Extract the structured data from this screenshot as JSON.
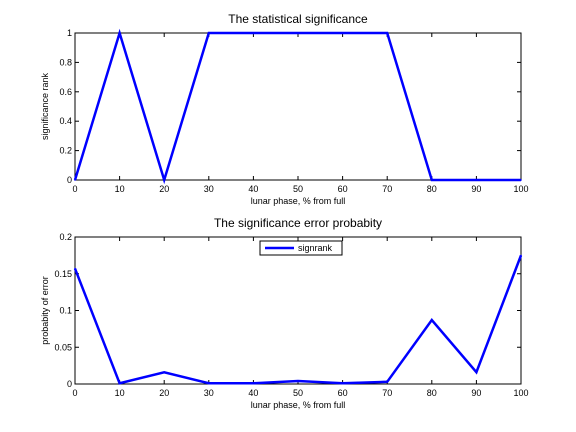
{
  "chart_data": [
    {
      "type": "line",
      "title": "The statistical significance",
      "xlabel": "lunar phase, % from full",
      "ylabel": "significance rank",
      "xlim": [
        0,
        100
      ],
      "ylim": [
        0,
        1
      ],
      "x_ticks": [
        0,
        10,
        20,
        30,
        40,
        50,
        60,
        70,
        80,
        90,
        100
      ],
      "y_ticks": [
        0,
        0.2,
        0.4,
        0.6,
        0.8,
        1
      ],
      "x_tick_labels": [
        "0",
        "10",
        "20",
        "30",
        "40",
        "50",
        "60",
        "70",
        "80",
        "90",
        "100"
      ],
      "y_tick_labels": [
        "0",
        "0.2",
        "0.4",
        "0.6",
        "0.8",
        "1"
      ],
      "grid": false,
      "series": [
        {
          "color": "#0000ff",
          "x": [
            0,
            10,
            20,
            30,
            40,
            50,
            60,
            70,
            80,
            90,
            100
          ],
          "values": [
            0,
            1,
            0,
            1,
            1,
            1,
            1,
            1,
            0,
            0,
            0
          ]
        }
      ]
    },
    {
      "type": "line",
      "title": "The significance error probabity",
      "xlabel": "lunar phase, % from full",
      "ylabel": "probabity of error",
      "xlim": [
        0,
        100
      ],
      "ylim": [
        0,
        0.2
      ],
      "x_ticks": [
        0,
        10,
        20,
        30,
        40,
        50,
        60,
        70,
        80,
        90,
        100
      ],
      "y_ticks": [
        0,
        0.05,
        0.1,
        0.15,
        0.2
      ],
      "x_tick_labels": [
        "0",
        "10",
        "20",
        "30",
        "40",
        "50",
        "60",
        "70",
        "80",
        "90",
        "100"
      ],
      "y_tick_labels": [
        "0",
        "0.05",
        "0.1",
        "0.15",
        "0.2"
      ],
      "grid": false,
      "legend": {
        "placement": "top-center",
        "entries": [
          "signrank"
        ]
      },
      "series": [
        {
          "name": "signrank",
          "color": "#0000ff",
          "x": [
            0,
            10,
            20,
            30,
            40,
            50,
            60,
            70,
            80,
            90,
            100
          ],
          "values": [
            0.157,
            0.001,
            0.016,
            0.001,
            0.001,
            0.004,
            0.001,
            0.003,
            0.087,
            0.016,
            0.175
          ]
        }
      ]
    }
  ]
}
